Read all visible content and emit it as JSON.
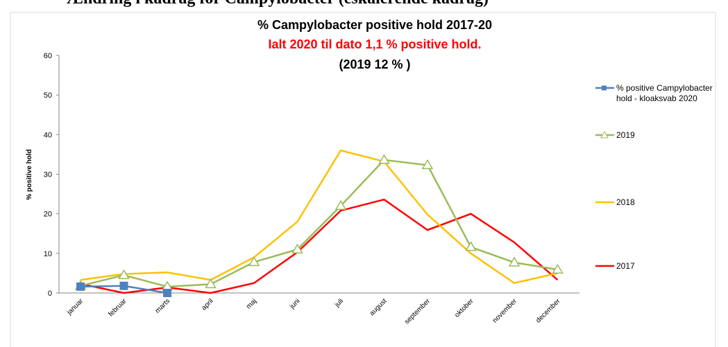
{
  "header": "Ændring i kadrag for Campylobacter (eskalerende kadrag)",
  "chart_data": {
    "type": "line",
    "title": "% Campylobacter positive hold 2017-20",
    "subtitle": "Ialt 2020 til dato 1,1 % positive hold.",
    "annotation": "(2019 12 % )",
    "y_label": "% positive hold",
    "categories": [
      "januar",
      "februar",
      "marts",
      "april",
      "maj",
      "juni",
      "juli",
      "august",
      "september",
      "oktober",
      "november",
      "december"
    ],
    "series": [
      {
        "name": "% positive Campylobacter hold - kloaksvab 2020",
        "color": "#4f81bd",
        "marker": "square",
        "values": [
          1.6,
          1.8,
          0,
          null,
          null,
          null,
          null,
          null,
          null,
          null,
          null,
          null
        ]
      },
      {
        "name": "2019",
        "color": "#9bbb59",
        "marker": "triangle",
        "values": [
          1.8,
          4.5,
          1.6,
          2.2,
          7.8,
          11,
          22,
          33.6,
          32.3,
          11.6,
          7.7,
          5.9
        ]
      },
      {
        "name": "2018",
        "color": "#ffc000",
        "marker": "none",
        "values": [
          3.3,
          4.8,
          5.2,
          3.3,
          9,
          18,
          36,
          33.2,
          19.8,
          10,
          2.5,
          5
        ]
      },
      {
        "name": "2017",
        "color": "#ff0000",
        "marker": "none",
        "values": [
          2.3,
          0,
          1.4,
          0,
          2.5,
          10.3,
          20.8,
          23.6,
          15.9,
          20,
          12.8,
          3.3
        ]
      }
    ],
    "ylim": [
      0,
      60
    ],
    "yticks": [
      0,
      10,
      20,
      30,
      40,
      50,
      60
    ],
    "grid": false,
    "legend": "right"
  }
}
